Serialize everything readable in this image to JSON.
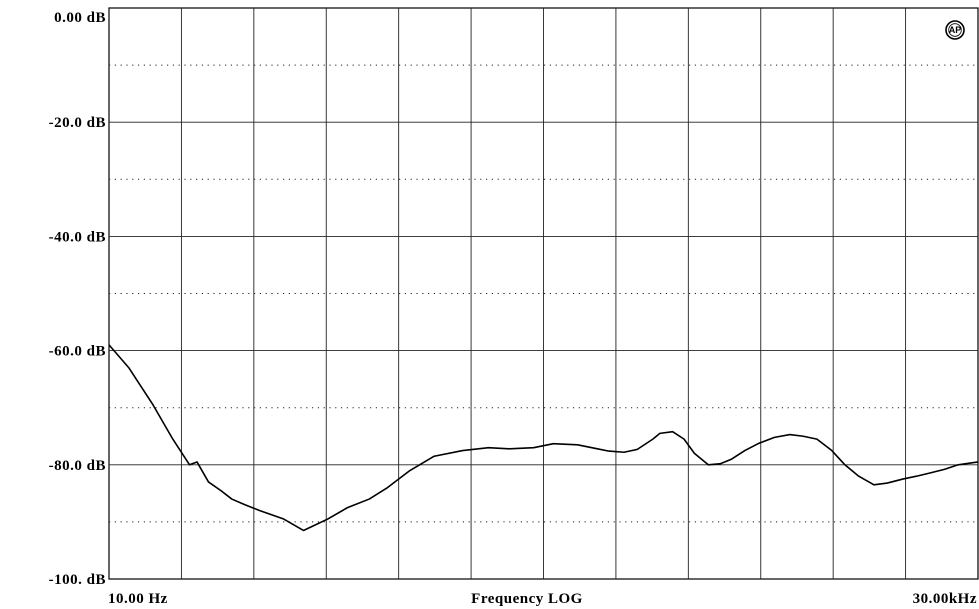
{
  "chart_data": {
    "type": "line",
    "title": "",
    "xlabel": "Frequency LOG",
    "ylabel": "",
    "x_scale": "log",
    "xlim": [
      10,
      30000
    ],
    "ylim": [
      -100,
      0
    ],
    "grid": true,
    "y_tick_labels": [
      "0.00 dB",
      "-20.0 dB",
      "-40.0 dB",
      "-60.0 dB",
      "-80.0 dB",
      "-100. dB"
    ],
    "y_tick_values": [
      0,
      -20,
      -40,
      -60,
      -80,
      -100
    ],
    "x_tick_labels": {
      "start": "10.00 Hz",
      "end": "30.00kHz"
    },
    "series": [
      {
        "x": [
          10,
          12,
          15,
          18,
          21,
          22.5,
          25,
          28,
          31,
          35,
          40,
          50,
          60,
          75,
          90,
          110,
          130,
          160,
          200,
          260,
          330,
          400,
          500,
          600,
          750,
          900,
          1000,
          1150,
          1300,
          1500,
          1600,
          1800,
          2000,
          2200,
          2500,
          2800,
          3100,
          3500,
          4000,
          4600,
          5300,
          6000,
          6800,
          7800,
          8800,
          10000,
          11500,
          13000,
          15000,
          17000,
          19000,
          22000,
          25000,
          30000
        ],
        "y": [
          -59,
          -63,
          -69.5,
          -75.5,
          -80,
          -79.5,
          -83,
          -84.5,
          -86,
          -87,
          -88,
          -89.5,
          -91.5,
          -89.5,
          -87.5,
          -86,
          -84,
          -81,
          -78.5,
          -77.5,
          -77,
          -77.2,
          -77,
          -76.3,
          -76.5,
          -77.2,
          -77.6,
          -77.8,
          -77.3,
          -75.5,
          -74.5,
          -74.2,
          -75.5,
          -78,
          -80,
          -79.8,
          -79,
          -77.5,
          -76.2,
          -75.2,
          -74.7,
          -75,
          -75.5,
          -77.5,
          -80,
          -82,
          -83.5,
          -83.2,
          -82.5,
          -82,
          -81.5,
          -80.8,
          -80,
          -79.5
        ]
      }
    ],
    "annotations": [
      "AP"
    ]
  },
  "colors": {
    "line": "#000000",
    "grid": "#000000",
    "background": "#ffffff"
  }
}
